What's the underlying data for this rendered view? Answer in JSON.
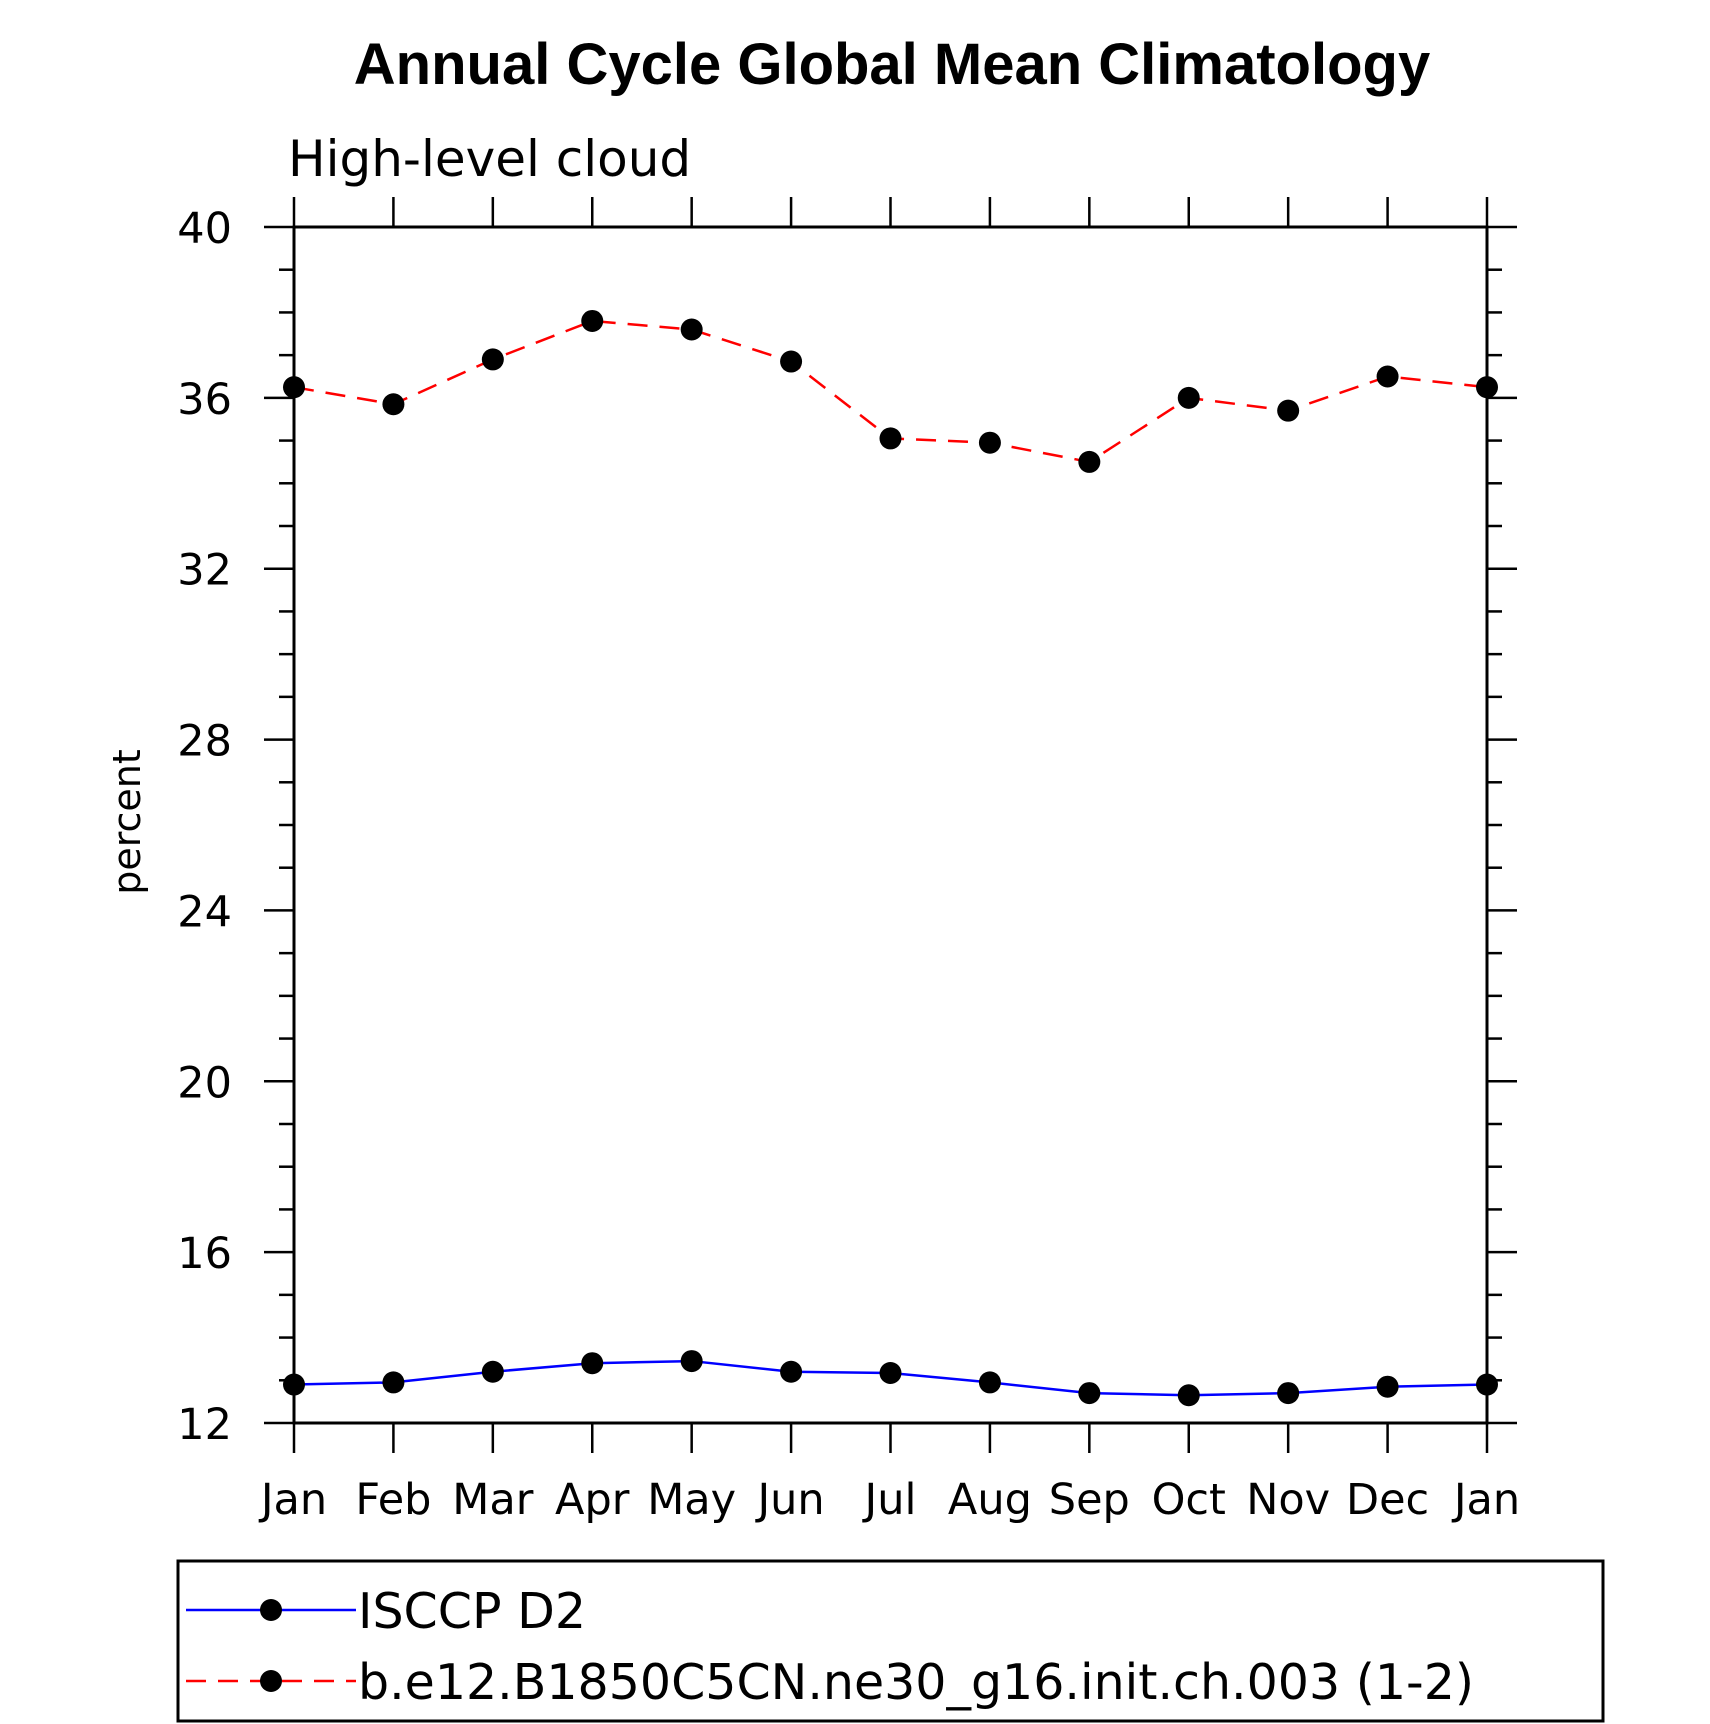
{
  "chart_data": {
    "type": "line",
    "title": "Annual Cycle Global Mean Climatology",
    "subtitle": "High-level cloud",
    "xlabel": "",
    "ylabel": "percent",
    "categories": [
      "Jan",
      "Feb",
      "Mar",
      "Apr",
      "May",
      "Jun",
      "Jul",
      "Aug",
      "Sep",
      "Oct",
      "Nov",
      "Dec",
      "Jan"
    ],
    "ylim": [
      12,
      40
    ],
    "yticks": [
      12,
      16,
      20,
      24,
      28,
      32,
      36,
      40
    ],
    "ytick_labels": [
      "12",
      "16",
      "20",
      "24",
      "28",
      "32",
      "36",
      "40"
    ],
    "legend_position": "bottom",
    "series": [
      {
        "name": "ISCCP D2",
        "color": "#0000ff",
        "dash": "solid",
        "values": [
          12.9,
          12.95,
          13.2,
          13.4,
          13.45,
          13.2,
          13.17,
          12.95,
          12.7,
          12.65,
          12.7,
          12.85,
          12.9
        ]
      },
      {
        "name": "b.e12.B1850C5CN.ne30_g16.init.ch.003 (1-2)",
        "color": "#ff0000",
        "dash": "dashed",
        "values": [
          36.25,
          35.85,
          36.9,
          37.8,
          37.6,
          36.85,
          35.05,
          34.95,
          34.5,
          36.0,
          35.7,
          36.5,
          36.25
        ]
      }
    ]
  }
}
